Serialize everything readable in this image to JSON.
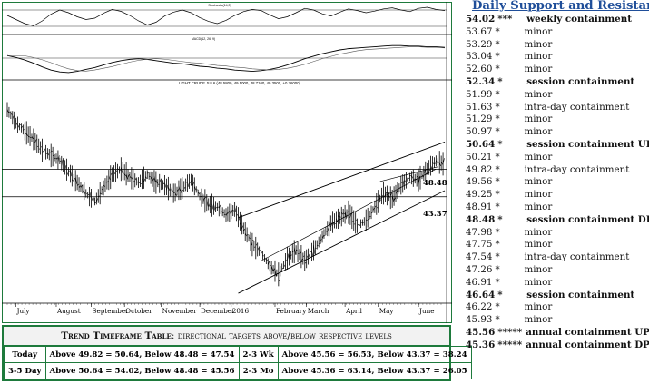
{
  "header": {
    "title": "Daily Support and Resistance"
  },
  "levels": [
    {
      "price": "54.02",
      "stars": "***",
      "label": "weekly containment",
      "bold": true
    },
    {
      "price": "53.67",
      "stars": "*",
      "label": "minor",
      "bold": false
    },
    {
      "price": "53.29",
      "stars": "*",
      "label": "minor",
      "bold": false
    },
    {
      "price": "53.04",
      "stars": "*",
      "label": "minor",
      "bold": false
    },
    {
      "price": "52.60",
      "stars": "*",
      "label": "minor",
      "bold": false
    },
    {
      "price": "52.34",
      "stars": "*",
      "label": "session containment",
      "bold": true
    },
    {
      "price": "51.99",
      "stars": "*",
      "label": "minor",
      "bold": false
    },
    {
      "price": "51.63",
      "stars": "*",
      "label": "intra-day containment",
      "bold": false
    },
    {
      "price": "51.29",
      "stars": "*",
      "label": "minor",
      "bold": false
    },
    {
      "price": "50.97",
      "stars": "*",
      "label": "minor",
      "bold": false
    },
    {
      "price": "50.64",
      "stars": "*",
      "label": "session containment UP",
      "bold": true
    },
    {
      "price": "50.21",
      "stars": "*",
      "label": "minor",
      "bold": false
    },
    {
      "price": "49.82",
      "stars": "*",
      "label": "intra-day containment",
      "bold": false
    },
    {
      "price": "49.56",
      "stars": "*",
      "label": "minor",
      "bold": false
    },
    {
      "price": "49.25",
      "stars": "*",
      "label": "minor",
      "bold": false
    },
    {
      "price": "48.91",
      "stars": "*",
      "label": "minor",
      "bold": false
    },
    {
      "price": "48.48",
      "stars": "*",
      "label": "session containment DP",
      "bold": true
    },
    {
      "price": "47.98",
      "stars": "*",
      "label": "minor",
      "bold": false
    },
    {
      "price": "47.75",
      "stars": "*",
      "label": "minor",
      "bold": false
    },
    {
      "price": "47.54",
      "stars": "*",
      "label": "intra-day containment",
      "bold": false
    },
    {
      "price": "47.26",
      "stars": "*",
      "label": "minor",
      "bold": false
    },
    {
      "price": "46.91",
      "stars": "*",
      "label": "minor",
      "bold": false
    },
    {
      "price": "46.64",
      "stars": "*",
      "label": "session containment",
      "bold": true
    },
    {
      "price": "46.22",
      "stars": "*",
      "label": "minor",
      "bold": false
    },
    {
      "price": "45.93",
      "stars": "*",
      "label": "minor",
      "bold": false
    },
    {
      "price": "45.56",
      "stars": "*****",
      "label": "annual containment UP",
      "bold": true
    },
    {
      "price": "45.36",
      "stars": "*****",
      "label": "annual containment DP",
      "bold": true
    }
  ],
  "trend_table": {
    "title_bold": "Trend Timeframe Table",
    "title_rest": ": directional targets above/below respective levels",
    "rows": [
      {
        "label": "Today",
        "text": "Above 49.82 = 50.64, Below 48.48 = 47.54",
        "label2": "2-3 Wk",
        "text2": "Above 45.56 = 56.53, Below 43.37 = 38.24"
      },
      {
        "label": "3-5 Day",
        "text": "Above 50.64 = 54.02, Below 48.48 = 45.56",
        "label2": "2-3 Mo",
        "text2": "Above 45.36 = 63.14, Below 43.37 = 26.05"
      }
    ]
  },
  "chart_data": {
    "type": "line",
    "title": "LIGHT CRUDE JUL6 (48.5800, 49.5000, 48.7100, 49.3500, +0.76000)",
    "indicator_panels": [
      "Stochastic(14,3)",
      "MACD(12, 26, 9)"
    ],
    "x_labels": [
      "July",
      "August",
      "September",
      "October",
      "November",
      "December",
      "2016",
      "February",
      "March",
      "April",
      "May",
      "June"
    ],
    "annotations": [
      "48.48",
      "43.37"
    ],
    "horizontal_levels": [
      48.48,
      43.37
    ],
    "ylim": [
      24,
      64
    ],
    "x": [
      0,
      5,
      10,
      15,
      20,
      25,
      30,
      35,
      40,
      45,
      50,
      55,
      60,
      65,
      70,
      75,
      80,
      85,
      90,
      95,
      100,
      105,
      110,
      115,
      120,
      125,
      130,
      135,
      140,
      145,
      150,
      155,
      160,
      165,
      170,
      175,
      180,
      185,
      190,
      195,
      200,
      205,
      210,
      215,
      220,
      225,
      230,
      235,
      240,
      245,
      250
    ],
    "close": [
      59.5,
      57.0,
      55.5,
      54.0,
      52.0,
      51.0,
      50.0,
      48.0,
      46.0,
      44.0,
      42.5,
      45.0,
      47.5,
      48.5,
      47.0,
      46.0,
      47.5,
      46.0,
      45.5,
      44.0,
      45.0,
      46.5,
      43.5,
      42.0,
      41.5,
      40.0,
      41.0,
      37.5,
      34.5,
      33.0,
      30.5,
      29.0,
      32.0,
      33.5,
      31.5,
      33.5,
      36.0,
      38.5,
      39.5,
      40.5,
      38.0,
      39.0,
      41.5,
      44.0,
      43.0,
      45.5,
      47.0,
      46.5,
      48.5,
      50.0,
      49.35
    ],
    "stochastic": [
      60,
      45,
      30,
      22,
      40,
      65,
      80,
      70,
      55,
      45,
      50,
      68,
      82,
      75,
      60,
      40,
      25,
      35,
      58,
      72,
      80,
      70,
      52,
      38,
      30,
      42,
      60,
      74,
      82,
      78,
      62,
      48,
      55,
      70,
      86,
      80,
      66,
      58,
      72,
      84,
      78,
      70,
      76,
      84,
      88,
      80,
      74,
      86,
      90,
      82,
      78
    ],
    "macd": [
      0.4,
      0.1,
      -0.3,
      -0.8,
      -1.4,
      -1.9,
      -2.2,
      -2.3,
      -2.1,
      -1.8,
      -1.5,
      -1.1,
      -0.7,
      -0.4,
      -0.2,
      -0.1,
      -0.2,
      -0.4,
      -0.6,
      -0.8,
      -0.9,
      -1.1,
      -1.3,
      -1.4,
      -1.6,
      -1.7,
      -1.9,
      -2.0,
      -2.1,
      -2.0,
      -1.8,
      -1.5,
      -1.1,
      -0.6,
      -0.1,
      0.3,
      0.7,
      1.0,
      1.3,
      1.5,
      1.6,
      1.7,
      1.8,
      1.9,
      2.0,
      2.0,
      1.9,
      1.9,
      1.8,
      1.8,
      1.7
    ]
  },
  "colors": {
    "frame": "#1e7a3c",
    "title": "#1f4e99",
    "price": "#000000"
  }
}
